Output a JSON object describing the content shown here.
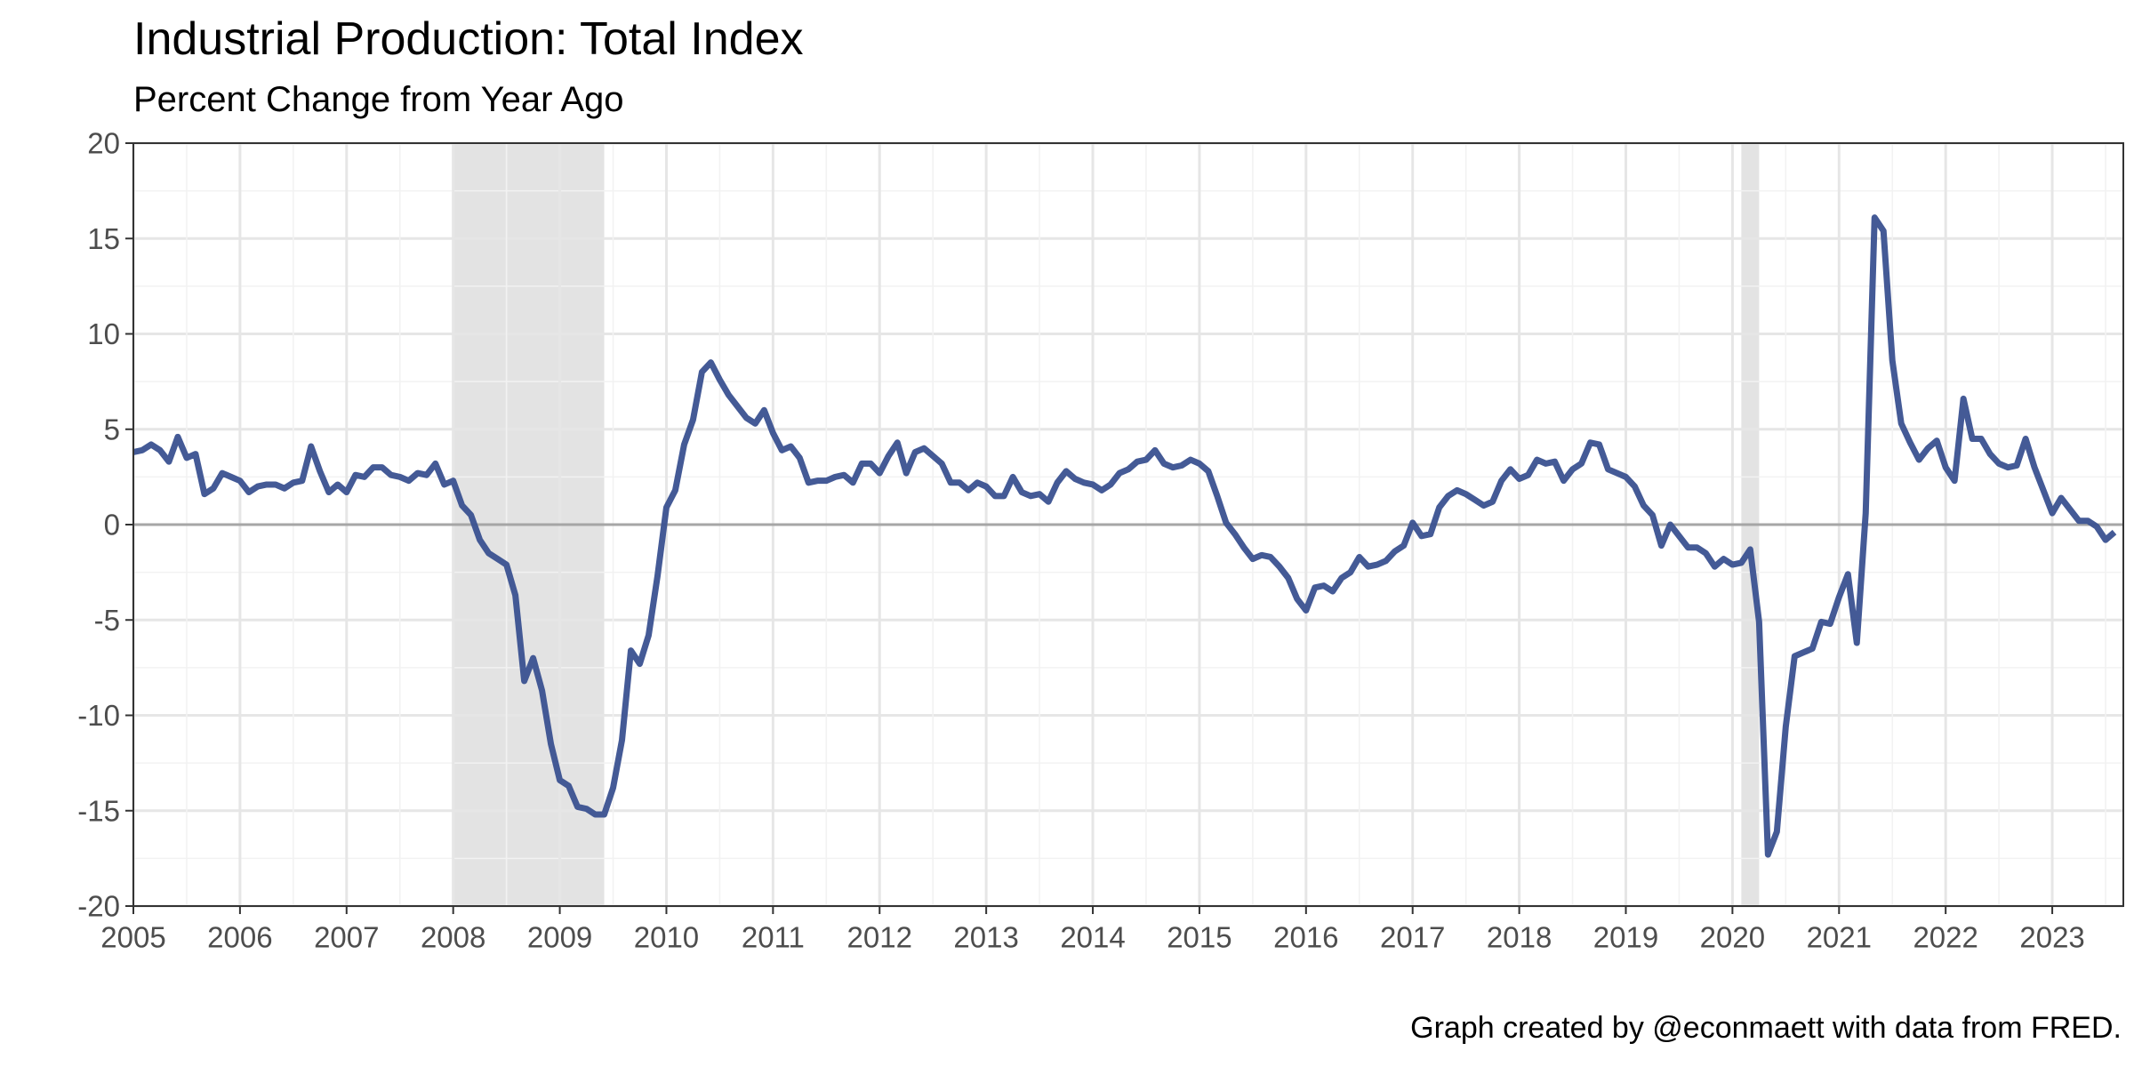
{
  "chart_data": {
    "type": "line",
    "title": "Industrial Production: Total Index",
    "subtitle": "Percent Change from Year Ago",
    "caption": "Graph created by @econmaett with data from FRED.",
    "xlabel": "",
    "ylabel": "",
    "xlim": [
      "2005-01",
      "2023-09"
    ],
    "ylim": [
      -20,
      20
    ],
    "y_ticks": [
      20,
      15,
      10,
      5,
      0,
      -5,
      -10,
      -15,
      -20
    ],
    "x_tick_labels": [
      "2005",
      "2006",
      "2007",
      "2008",
      "2009",
      "2010",
      "2011",
      "2012",
      "2013",
      "2014",
      "2015",
      "2016",
      "2017",
      "2018",
      "2019",
      "2020",
      "2021",
      "2022",
      "2023"
    ],
    "grid": true,
    "zero_line": true,
    "series_color": "#3a5190",
    "recession_color": "#e3e3e3",
    "recessions": [
      {
        "start": "2008-01",
        "end": "2009-06"
      },
      {
        "start": "2020-02",
        "end": "2020-04"
      }
    ],
    "series": [
      {
        "x": [
          "2005-01",
          "2005-02",
          "2005-03",
          "2005-04",
          "2005-05",
          "2005-06",
          "2005-07",
          "2005-08",
          "2005-09",
          "2005-10",
          "2005-11",
          "2005-12",
          "2006-01",
          "2006-02",
          "2006-03",
          "2006-04",
          "2006-05",
          "2006-06",
          "2006-07",
          "2006-08",
          "2006-09",
          "2006-10",
          "2006-11",
          "2006-12",
          "2007-01",
          "2007-02",
          "2007-03",
          "2007-04",
          "2007-05",
          "2007-06",
          "2007-07",
          "2007-08",
          "2007-09",
          "2007-10",
          "2007-11",
          "2007-12",
          "2008-01",
          "2008-02",
          "2008-03",
          "2008-04",
          "2008-05",
          "2008-06",
          "2008-07",
          "2008-08",
          "2008-09",
          "2008-10",
          "2008-11",
          "2008-12",
          "2009-01",
          "2009-02",
          "2009-03",
          "2009-04",
          "2009-05",
          "2009-06",
          "2009-07",
          "2009-08",
          "2009-09",
          "2009-10",
          "2009-11",
          "2009-12",
          "2010-01",
          "2010-02",
          "2010-03",
          "2010-04",
          "2010-05",
          "2010-06",
          "2010-07",
          "2010-08",
          "2010-09",
          "2010-10",
          "2010-11",
          "2010-12",
          "2011-01",
          "2011-02",
          "2011-03",
          "2011-04",
          "2011-05",
          "2011-06",
          "2011-07",
          "2011-08",
          "2011-09",
          "2011-10",
          "2011-11",
          "2011-12",
          "2012-01",
          "2012-02",
          "2012-03",
          "2012-04",
          "2012-05",
          "2012-06",
          "2012-07",
          "2012-08",
          "2012-09",
          "2012-10",
          "2012-11",
          "2012-12",
          "2013-01",
          "2013-02",
          "2013-03",
          "2013-04",
          "2013-05",
          "2013-06",
          "2013-07",
          "2013-08",
          "2013-09",
          "2013-10",
          "2013-11",
          "2013-12",
          "2014-01",
          "2014-02",
          "2014-03",
          "2014-04",
          "2014-05",
          "2014-06",
          "2014-07",
          "2014-08",
          "2014-09",
          "2014-10",
          "2014-11",
          "2014-12",
          "2015-01",
          "2015-02",
          "2015-03",
          "2015-04",
          "2015-05",
          "2015-06",
          "2015-07",
          "2015-08",
          "2015-09",
          "2015-10",
          "2015-11",
          "2015-12",
          "2016-01",
          "2016-02",
          "2016-03",
          "2016-04",
          "2016-05",
          "2016-06",
          "2016-07",
          "2016-08",
          "2016-09",
          "2016-10",
          "2016-11",
          "2016-12",
          "2017-01",
          "2017-02",
          "2017-03",
          "2017-04",
          "2017-05",
          "2017-06",
          "2017-07",
          "2017-08",
          "2017-09",
          "2017-10",
          "2017-11",
          "2017-12",
          "2018-01",
          "2018-02",
          "2018-03",
          "2018-04",
          "2018-05",
          "2018-06",
          "2018-07",
          "2018-08",
          "2018-09",
          "2018-10",
          "2018-11",
          "2018-12",
          "2019-01",
          "2019-02",
          "2019-03",
          "2019-04",
          "2019-05",
          "2019-06",
          "2019-07",
          "2019-08",
          "2019-09",
          "2019-10",
          "2019-11",
          "2019-12",
          "2020-01",
          "2020-02",
          "2020-03",
          "2020-04",
          "2020-05",
          "2020-06",
          "2020-07",
          "2020-08",
          "2020-09",
          "2020-10",
          "2020-11",
          "2020-12",
          "2021-01",
          "2021-02",
          "2021-03",
          "2021-04",
          "2021-05",
          "2021-06",
          "2021-07",
          "2021-08",
          "2021-09",
          "2021-10",
          "2021-11",
          "2021-12",
          "2022-01",
          "2022-02",
          "2022-03",
          "2022-04",
          "2022-05",
          "2022-06",
          "2022-07",
          "2022-08",
          "2022-09",
          "2022-10",
          "2022-11",
          "2022-12",
          "2023-01",
          "2023-02",
          "2023-03",
          "2023-04",
          "2023-05",
          "2023-06",
          "2023-07",
          "2023-08"
        ],
        "values": [
          3.8,
          3.9,
          4.2,
          3.9,
          3.3,
          4.6,
          3.5,
          3.7,
          1.6,
          1.9,
          2.7,
          2.5,
          2.3,
          1.7,
          2.0,
          2.1,
          2.1,
          1.9,
          2.2,
          2.3,
          4.1,
          2.8,
          1.7,
          2.1,
          1.7,
          2.6,
          2.5,
          3.0,
          3.0,
          2.6,
          2.5,
          2.3,
          2.7,
          2.6,
          3.2,
          2.1,
          2.3,
          1.0,
          0.5,
          -0.8,
          -1.5,
          -1.8,
          -2.1,
          -3.7,
          -8.2,
          -7.0,
          -8.7,
          -11.5,
          -13.4,
          -13.7,
          -14.8,
          -14.9,
          -15.2,
          -15.2,
          -13.8,
          -11.3,
          -6.6,
          -7.3,
          -5.8,
          -2.7,
          0.9,
          1.8,
          4.2,
          5.5,
          8.0,
          8.5,
          7.6,
          6.8,
          6.2,
          5.6,
          5.3,
          6.0,
          4.8,
          3.9,
          4.1,
          3.5,
          2.2,
          2.3,
          2.3,
          2.5,
          2.6,
          2.2,
          3.2,
          3.2,
          2.7,
          3.6,
          4.3,
          2.7,
          3.8,
          4.0,
          3.6,
          3.2,
          2.2,
          2.2,
          1.8,
          2.2,
          2.0,
          1.5,
          1.5,
          2.5,
          1.7,
          1.5,
          1.6,
          1.2,
          2.2,
          2.8,
          2.4,
          2.2,
          2.1,
          1.8,
          2.1,
          2.7,
          2.9,
          3.3,
          3.4,
          3.9,
          3.2,
          3.0,
          3.1,
          3.4,
          3.2,
          2.8,
          1.5,
          0.1,
          -0.5,
          -1.2,
          -1.8,
          -1.6,
          -1.7,
          -2.2,
          -2.8,
          -3.9,
          -4.5,
          -3.3,
          -3.2,
          -3.5,
          -2.8,
          -2.5,
          -1.7,
          -2.2,
          -2.1,
          -1.9,
          -1.4,
          -1.1,
          0.1,
          -0.6,
          -0.5,
          0.9,
          1.5,
          1.8,
          1.6,
          1.3,
          1.0,
          1.2,
          2.3,
          2.9,
          2.4,
          2.6,
          3.4,
          3.2,
          3.3,
          2.3,
          2.9,
          3.2,
          4.3,
          4.2,
          2.9,
          2.7,
          2.5,
          2.0,
          1.0,
          0.5,
          -1.1,
          0.0,
          -0.6,
          -1.2,
          -1.2,
          -1.5,
          -2.2,
          -1.8,
          -2.1,
          -2.0,
          -1.3,
          -5.1,
          -17.3,
          -16.1,
          -10.6,
          -6.9,
          -6.7,
          -6.5,
          -5.1,
          -5.2,
          -3.8,
          -2.6,
          -6.2,
          0.6,
          16.1,
          15.4,
          8.6,
          5.3,
          4.3,
          3.4,
          4.0,
          4.4,
          3.0,
          2.3,
          6.6,
          4.5,
          4.5,
          3.7,
          3.2,
          3.0,
          3.1,
          4.5,
          3.0,
          1.8,
          0.6,
          1.4,
          0.8,
          0.2,
          0.2,
          -0.1,
          -0.8,
          -0.4
        ]
      }
    ]
  }
}
